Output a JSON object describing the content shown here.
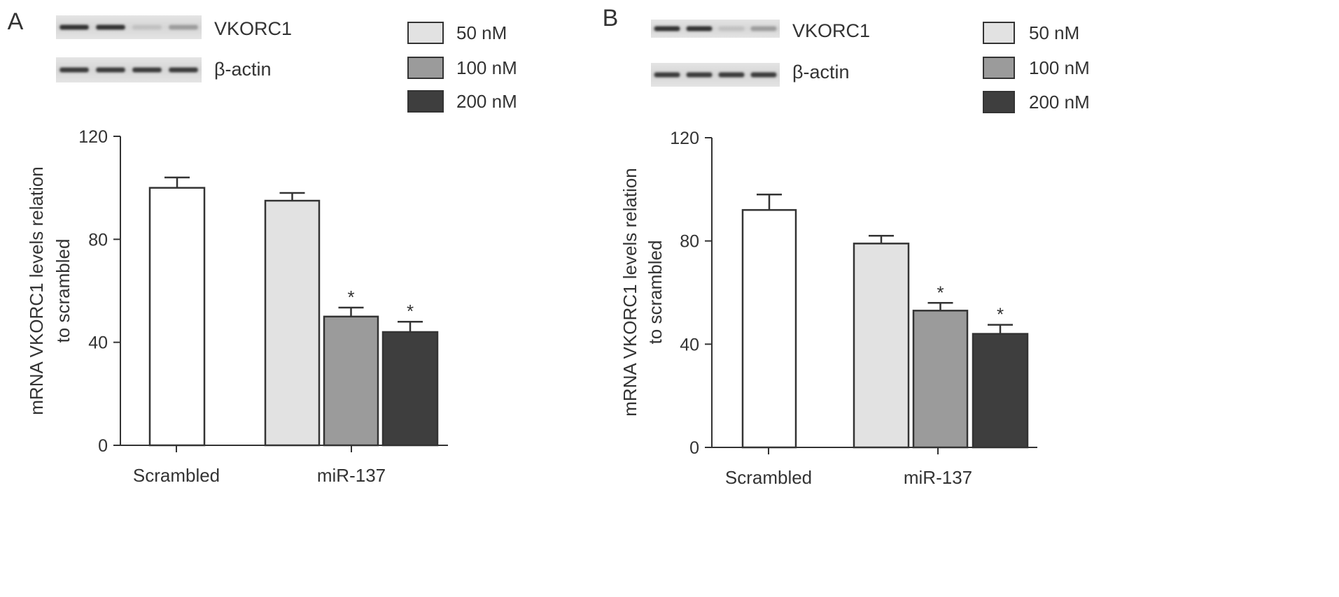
{
  "colors": {
    "scrambled": "#ffffff",
    "nm50": "#e2e2e2",
    "nm100": "#9b9b9b",
    "nm200": "#3e3e3e",
    "axis": "#333333",
    "text": "#333333"
  },
  "chart_data": [
    {
      "type": "bar",
      "panel_label": "A",
      "ylabel_lines": [
        "mRNA VKORC1 levels relation",
        "to scrambled"
      ],
      "xlabel": "",
      "title": "",
      "ylim": [
        0,
        120
      ],
      "yticks": [
        "0",
        "40",
        "80",
        "120"
      ],
      "groups": [
        "Scrambled",
        "miR-137"
      ],
      "legend": {
        "position": "top-right",
        "entries": [
          {
            "label": "50 nM",
            "color": "#e2e2e2"
          },
          {
            "label": "100 nM",
            "color": "#9b9b9b"
          },
          {
            "label": "200 nM",
            "color": "#3e3e3e"
          }
        ]
      },
      "blot": {
        "labels": [
          "VKORC1",
          "β-actin"
        ]
      },
      "bars": [
        {
          "group": "Scrambled",
          "value": 100,
          "error": 4,
          "color": "#ffffff",
          "annotation": ""
        },
        {
          "group": "miR-137",
          "series": "50 nM",
          "value": 95,
          "error": 3,
          "color": "#e2e2e2",
          "annotation": ""
        },
        {
          "group": "miR-137",
          "series": "100 nM",
          "value": 50,
          "error": 3.5,
          "color": "#9b9b9b",
          "annotation": "*"
        },
        {
          "group": "miR-137",
          "series": "200 nM",
          "value": 44,
          "error": 4,
          "color": "#3e3e3e",
          "annotation": "*"
        }
      ]
    },
    {
      "type": "bar",
      "panel_label": "B",
      "ylabel_lines": [
        "mRNA VKORC1 levels relation",
        "to scrambled"
      ],
      "xlabel": "",
      "title": "",
      "ylim": [
        0,
        120
      ],
      "yticks": [
        "0",
        "40",
        "80",
        "120"
      ],
      "groups": [
        "Scrambled",
        "miR-137"
      ],
      "legend": {
        "position": "top-right",
        "entries": [
          {
            "label": "50 nM",
            "color": "#e2e2e2"
          },
          {
            "label": "100 nM",
            "color": "#9b9b9b"
          },
          {
            "label": "200 nM",
            "color": "#3e3e3e"
          }
        ]
      },
      "blot": {
        "labels": [
          "VKORC1",
          "β-actin"
        ]
      },
      "bars": [
        {
          "group": "Scrambled",
          "value": 92,
          "error": 6,
          "color": "#ffffff",
          "annotation": ""
        },
        {
          "group": "miR-137",
          "series": "50 nM",
          "value": 79,
          "error": 3,
          "color": "#e2e2e2",
          "annotation": ""
        },
        {
          "group": "miR-137",
          "series": "100 nM",
          "value": 53,
          "error": 3,
          "color": "#9b9b9b",
          "annotation": "*"
        },
        {
          "group": "miR-137",
          "series": "200 nM",
          "value": 44,
          "error": 3.5,
          "color": "#3e3e3e",
          "annotation": "*"
        }
      ]
    }
  ]
}
